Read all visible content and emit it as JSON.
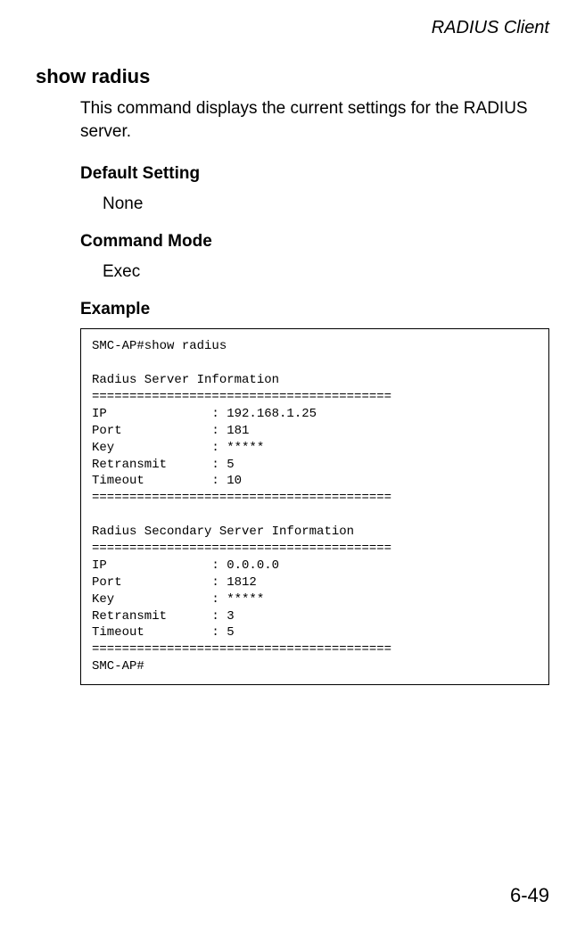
{
  "page": {
    "running_head": "RADIUS Client",
    "page_number": "6-49"
  },
  "command": {
    "name": "show radius",
    "description": "This command displays the current settings for the RADIUS server."
  },
  "sections": {
    "default_setting_label": "Default Setting",
    "default_setting_value": "None",
    "command_mode_label": "Command Mode",
    "command_mode_value": "Exec",
    "example_label": "Example"
  },
  "example_output": "SMC-AP#show radius\n\nRadius Server Information\n========================================\nIP              : 192.168.1.25\nPort            : 181\nKey             : *****\nRetransmit      : 5\nTimeout         : 10\n========================================\n\nRadius Secondary Server Information\n========================================\nIP              : 0.0.0.0\nPort            : 1812\nKey             : *****\nRetransmit      : 3\nTimeout         : 5\n========================================\nSMC-AP#"
}
